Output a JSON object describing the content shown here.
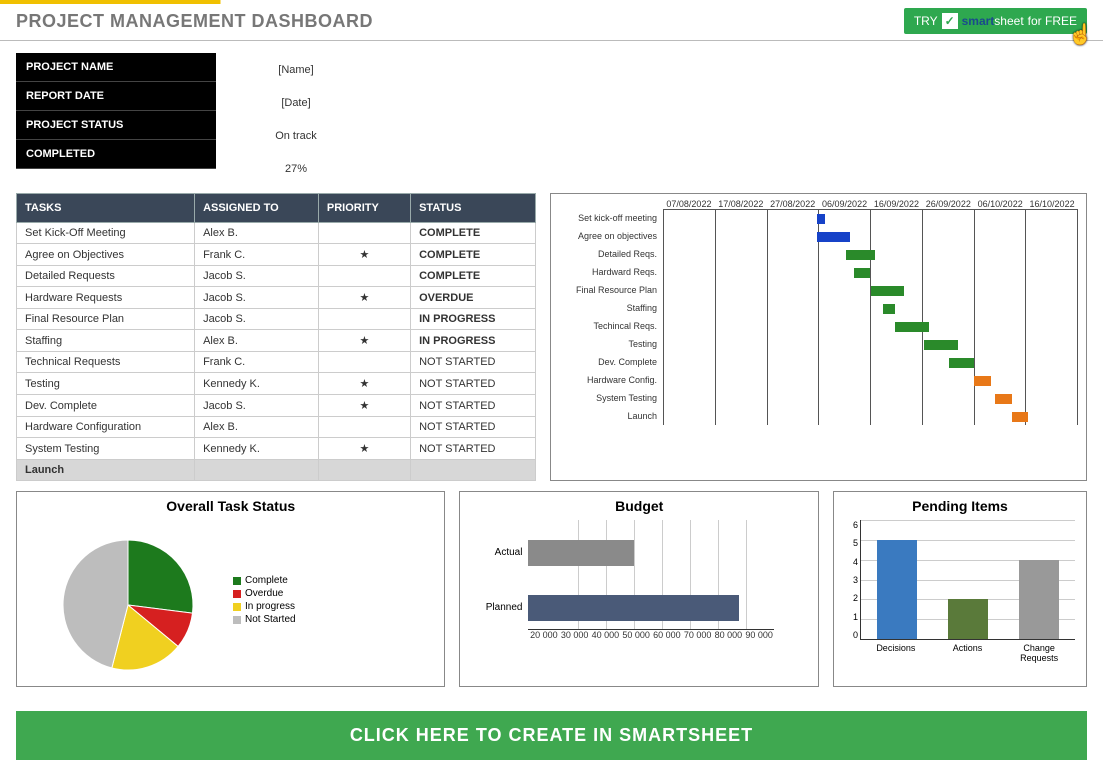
{
  "header": {
    "title": "PROJECT MANAGEMENT DASHBOARD",
    "try_prefix": "TRY",
    "brand_first": "smart",
    "brand_rest": "sheet",
    "try_suffix": "for FREE"
  },
  "info": {
    "labels": [
      "PROJECT NAME",
      "REPORT DATE",
      "PROJECT STATUS",
      "COMPLETED"
    ],
    "values": [
      "[Name]",
      "[Date]",
      "On track",
      "27%"
    ]
  },
  "tasks": {
    "headers": [
      "TASKS",
      "ASSIGNED TO",
      "PRIORITY",
      "STATUS"
    ],
    "rows": [
      {
        "task": "Set Kick-Off Meeting",
        "assigned": "Alex B.",
        "priority": "",
        "status": "COMPLETE",
        "status_class": "complete"
      },
      {
        "task": "Agree on Objectives",
        "assigned": "Frank C.",
        "priority": "★",
        "status": "COMPLETE",
        "status_class": "complete"
      },
      {
        "task": "Detailed Requests",
        "assigned": "Jacob S.",
        "priority": "",
        "status": "COMPLETE",
        "status_class": "complete"
      },
      {
        "task": "Hardware Requests",
        "assigned": "Jacob S.",
        "priority": "★",
        "status": "OVERDUE",
        "status_class": "overdue"
      },
      {
        "task": "Final Resource Plan",
        "assigned": "Jacob S.",
        "priority": "",
        "status": "IN PROGRESS",
        "status_class": "inprogress"
      },
      {
        "task": "Staffing",
        "assigned": "Alex B.",
        "priority": "★",
        "status": "IN PROGRESS",
        "status_class": "inprogress"
      },
      {
        "task": "Technical Requests",
        "assigned": "Frank C.",
        "priority": "",
        "status": "NOT STARTED",
        "status_class": "notstarted"
      },
      {
        "task": "Testing",
        "assigned": "Kennedy K.",
        "priority": "★",
        "status": "NOT STARTED",
        "status_class": "notstarted"
      },
      {
        "task": "Dev. Complete",
        "assigned": "Jacob S.",
        "priority": "★",
        "status": "NOT STARTED",
        "status_class": "notstarted"
      },
      {
        "task": "Hardware Configuration",
        "assigned": "Alex B.",
        "priority": "",
        "status": "NOT STARTED",
        "status_class": "notstarted"
      },
      {
        "task": "System Testing",
        "assigned": "Kennedy K.",
        "priority": "★",
        "status": "NOT STARTED",
        "status_class": "notstarted"
      }
    ],
    "launch_label": "Launch"
  },
  "gantt": {
    "dates": [
      "07/08/2022",
      "17/08/2022",
      "27/08/2022",
      "06/09/2022",
      "16/09/2022",
      "26/09/2022",
      "06/10/2022",
      "16/10/2022"
    ],
    "rows": [
      "Set kick-off meeting",
      "Agree on objectives",
      "Detailed Reqs.",
      "Hardward Reqs.",
      "Final Resource Plan",
      "Staffing",
      "Techincal Reqs.",
      "Testing",
      "Dev. Complete",
      "Hardware Config.",
      "System Testing",
      "Launch"
    ],
    "bars": [
      {
        "row": 0,
        "start": 37,
        "width": 2,
        "color": "#1642c8"
      },
      {
        "row": 1,
        "start": 37,
        "width": 8,
        "color": "#1642c8"
      },
      {
        "row": 2,
        "start": 44,
        "width": 7,
        "color": "#2a8a2a"
      },
      {
        "row": 3,
        "start": 46,
        "width": 4,
        "color": "#2a8a2a"
      },
      {
        "row": 4,
        "start": 50,
        "width": 8,
        "color": "#2a8a2a"
      },
      {
        "row": 5,
        "start": 53,
        "width": 3,
        "color": "#2a8a2a"
      },
      {
        "row": 6,
        "start": 56,
        "width": 8,
        "color": "#2a8a2a"
      },
      {
        "row": 7,
        "start": 63,
        "width": 8,
        "color": "#2a8a2a"
      },
      {
        "row": 8,
        "start": 69,
        "width": 6,
        "color": "#2a8a2a"
      },
      {
        "row": 9,
        "start": 75,
        "width": 4,
        "color": "#e87818"
      },
      {
        "row": 10,
        "start": 80,
        "width": 4,
        "color": "#e87818"
      },
      {
        "row": 11,
        "start": 84,
        "width": 4,
        "color": "#e87818"
      }
    ]
  },
  "pie": {
    "title": "Overall Task Status",
    "slices": [
      {
        "label": "Complete",
        "value": 27,
        "color": "#1d7a1d"
      },
      {
        "label": "Overdue",
        "value": 9,
        "color": "#d62020"
      },
      {
        "label": "In progress",
        "value": 18,
        "color": "#f0d020"
      },
      {
        "label": "Not Started",
        "value": 46,
        "color": "#bdbdbd"
      }
    ]
  },
  "budget": {
    "title": "Budget",
    "bars": [
      {
        "label": "Actual",
        "value": 50000,
        "color": "#8a8a8a"
      },
      {
        "label": "Planned",
        "value": 80000,
        "color": "#4a5a78"
      }
    ],
    "xmin": 20000,
    "xmax": 90000,
    "xticks": [
      "20 000",
      "30 000",
      "40 000",
      "50 000",
      "60 000",
      "70 000",
      "80 000",
      "90 000"
    ]
  },
  "pending": {
    "title": "Pending Items",
    "bars": [
      {
        "label": "Decisions",
        "value": 5,
        "color": "#3a7ac0"
      },
      {
        "label": "Actions",
        "value": 2,
        "color": "#5a7a3a"
      },
      {
        "label": "Change Requests",
        "value": 4,
        "color": "#999999"
      }
    ],
    "ymax": 6,
    "yticks": [
      "0",
      "1",
      "2",
      "3",
      "4",
      "5",
      "6"
    ]
  },
  "cta": "CLICK HERE TO CREATE IN SMARTSHEET"
}
